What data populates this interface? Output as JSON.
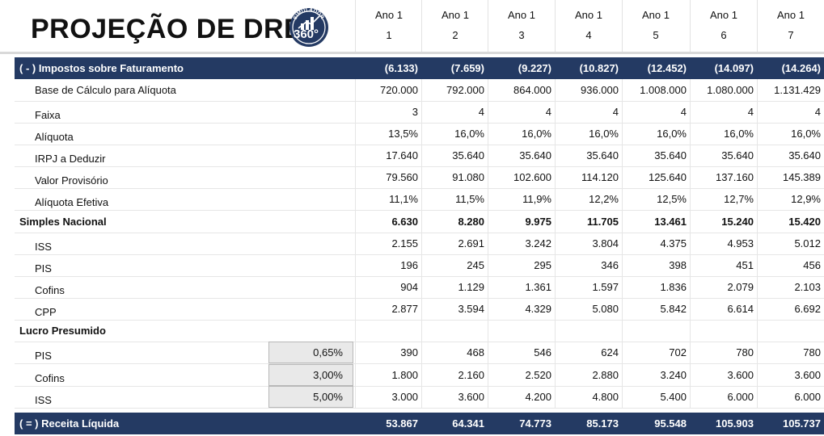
{
  "title": "PROJEÇÃO DE DRE",
  "logo": {
    "arc_text": "SIMULADOR",
    "main_text": "360°",
    "icon": "chart-bars-logo-icon",
    "color": "#243a63"
  },
  "years": [
    {
      "label": "Ano 1",
      "num": "1"
    },
    {
      "label": "Ano 1",
      "num": "2"
    },
    {
      "label": "Ano 1",
      "num": "3"
    },
    {
      "label": "Ano 1",
      "num": "4"
    },
    {
      "label": "Ano 1",
      "num": "5"
    },
    {
      "label": "Ano 1",
      "num": "6"
    },
    {
      "label": "Ano 1",
      "num": "7"
    }
  ],
  "colors": {
    "band": "#243a63",
    "pct_bg": "#e9e9e9"
  },
  "rows": {
    "impostos": {
      "label": "( - ) Impostos sobre Faturamento",
      "values": [
        "(6.133)",
        "(7.659)",
        "(9.227)",
        "(10.827)",
        "(12.452)",
        "(14.097)",
        "(14.264)"
      ]
    },
    "base": {
      "label": "Base de Cálculo para Alíquota",
      "values": [
        "720.000",
        "792.000",
        "864.000",
        "936.000",
        "1.008.000",
        "1.080.000",
        "1.131.429"
      ]
    },
    "faixa": {
      "label": "Faixa",
      "values": [
        "3",
        "4",
        "4",
        "4",
        "4",
        "4",
        "4"
      ]
    },
    "aliquota": {
      "label": "Alíquota",
      "values": [
        "13,5%",
        "16,0%",
        "16,0%",
        "16,0%",
        "16,0%",
        "16,0%",
        "16,0%"
      ]
    },
    "irpj": {
      "label": "IRPJ a Deduzir",
      "values": [
        "17.640",
        "35.640",
        "35.640",
        "35.640",
        "35.640",
        "35.640",
        "35.640"
      ]
    },
    "provisorio": {
      "label": "Valor Provisório",
      "values": [
        "79.560",
        "91.080",
        "102.600",
        "114.120",
        "125.640",
        "137.160",
        "145.389"
      ]
    },
    "efetiva": {
      "label": "Alíquota Efetiva",
      "values": [
        "11,1%",
        "11,5%",
        "11,9%",
        "12,2%",
        "12,5%",
        "12,7%",
        "12,9%"
      ]
    },
    "simples": {
      "label": "Simples Nacional",
      "values": [
        "6.630",
        "8.280",
        "9.975",
        "11.705",
        "13.461",
        "15.240",
        "15.420"
      ]
    },
    "iss": {
      "label": "ISS",
      "values": [
        "2.155",
        "2.691",
        "3.242",
        "3.804",
        "4.375",
        "4.953",
        "5.012"
      ]
    },
    "pis": {
      "label": "PIS",
      "values": [
        "196",
        "245",
        "295",
        "346",
        "398",
        "451",
        "456"
      ]
    },
    "cofins": {
      "label": "Cofins",
      "values": [
        "904",
        "1.129",
        "1.361",
        "1.597",
        "1.836",
        "2.079",
        "2.103"
      ]
    },
    "cpp": {
      "label": "CPP",
      "values": [
        "2.877",
        "3.594",
        "4.329",
        "5.080",
        "5.842",
        "6.614",
        "6.692"
      ]
    },
    "lucro": {
      "label": "Lucro Presumido"
    },
    "lp_pis": {
      "label": "PIS",
      "rate": "0,65%",
      "values": [
        "390",
        "468",
        "546",
        "624",
        "702",
        "780",
        "780"
      ]
    },
    "lp_cofins": {
      "label": "Cofins",
      "rate": "3,00%",
      "values": [
        "1.800",
        "2.160",
        "2.520",
        "2.880",
        "3.240",
        "3.600",
        "3.600"
      ]
    },
    "lp_iss": {
      "label": "ISS",
      "rate": "5,00%",
      "values": [
        "3.000",
        "3.600",
        "4.200",
        "4.800",
        "5.400",
        "6.000",
        "6.000"
      ]
    },
    "receita": {
      "label": "( = ) Receita Líquida",
      "values": [
        "53.867",
        "64.341",
        "74.773",
        "85.173",
        "95.548",
        "105.903",
        "105.737"
      ]
    }
  }
}
